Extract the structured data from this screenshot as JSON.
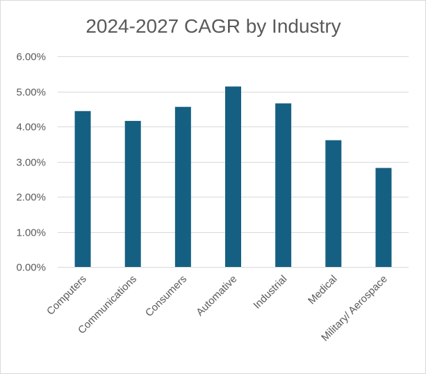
{
  "chart_data": {
    "type": "bar",
    "title": "2024-2027 CAGR by Industry",
    "xlabel": "",
    "ylabel": "",
    "categories": [
      "Computers",
      "Communications",
      "Consumers",
      "Automative",
      "Industrial",
      "Medical",
      "Military/ Aerospace"
    ],
    "values": [
      0.0444,
      0.0416,
      0.0456,
      0.0514,
      0.0466,
      0.0361,
      0.0282
    ],
    "y_ticks": [
      "0.00%",
      "1.00%",
      "2.00%",
      "3.00%",
      "4.00%",
      "5.00%",
      "6.00%"
    ],
    "ylim": [
      0,
      0.06
    ],
    "grid": true,
    "legend": "none",
    "bar_color": "#156082"
  }
}
